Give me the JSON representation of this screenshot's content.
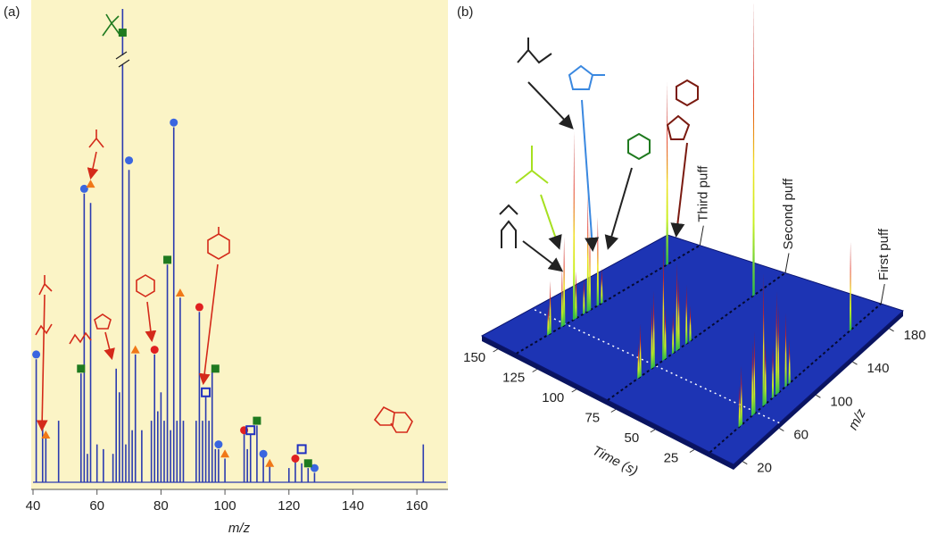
{
  "chart_data": [
    {
      "type": "stem",
      "label": "(a)",
      "xlabel": "m/z",
      "xlim": [
        40,
        170
      ],
      "xticks": [
        40,
        60,
        80,
        100,
        120,
        140,
        160
      ],
      "ylim": [
        0,
        100
      ],
      "color": "#2a3ab0",
      "x": [
        41,
        43,
        44,
        48,
        55,
        56,
        57,
        58,
        60,
        62,
        65,
        66,
        67,
        68,
        69,
        70,
        71,
        72,
        74,
        77,
        78,
        79,
        80,
        81,
        82,
        83,
        84,
        85,
        86,
        87,
        91,
        92,
        93,
        94,
        95,
        96,
        97,
        98,
        100,
        106,
        107,
        108,
        110,
        112,
        114,
        120,
        122,
        124,
        126,
        128,
        162
      ],
      "values": [
        26,
        13,
        10,
        13,
        23,
        61,
        6,
        59,
        8,
        7,
        6,
        24,
        19,
        100,
        8,
        66,
        11,
        27,
        11,
        13,
        27,
        15,
        19,
        13,
        46,
        11,
        75,
        13,
        39,
        13,
        13,
        36,
        13,
        18,
        13,
        24,
        7,
        7,
        5,
        11,
        7,
        10,
        12,
        6,
        4,
        3,
        5,
        4,
        3,
        2,
        8
      ],
      "markers": [
        {
          "shape": "circle",
          "color": "#3a66e0",
          "x": [
            41,
            56,
            70,
            84,
            98,
            112,
            128
          ],
          "values": [
            27,
            62,
            68,
            76,
            8,
            6,
            3
          ]
        },
        {
          "shape": "square",
          "color": "#1f7a1f",
          "x": [
            55,
            68,
            82,
            97,
            110,
            126
          ],
          "values": [
            24,
            95,
            47,
            24,
            13,
            4
          ]
        },
        {
          "shape": "triangle",
          "color": "#f07818",
          "x": [
            44,
            58,
            72,
            86,
            100,
            114
          ],
          "values": [
            10,
            63,
            28,
            40,
            6,
            4
          ]
        },
        {
          "shape": "circle",
          "color": "#e02020",
          "x": [
            78,
            92,
            106,
            122
          ],
          "values": [
            28,
            37,
            11,
            5
          ]
        },
        {
          "shape": "open-square",
          "color": "#2030c0",
          "x": [
            94,
            108,
            124
          ],
          "values": [
            19,
            11,
            7
          ]
        }
      ]
    },
    {
      "type": "surface3d",
      "label": "(b)",
      "xlabel": "m/z",
      "ylabel": "Time (s)",
      "xlim": [
        10,
        195
      ],
      "xticks": [
        20,
        60,
        100,
        140,
        180
      ],
      "ylim": [
        0,
        160
      ],
      "yticks": [
        25,
        50,
        75,
        100,
        125,
        150
      ],
      "zlim": [
        0,
        100
      ],
      "series": [
        {
          "name": "First puff",
          "time": 15,
          "x": [
            42,
            44,
            56,
            58,
            68,
            70,
            78,
            82,
            84,
            92,
            96,
            162
          ],
          "values": [
            14,
            20,
            25,
            28,
            45,
            22,
            18,
            35,
            30,
            25,
            15,
            30
          ]
        },
        {
          "name": "Second puff",
          "time": 80,
          "x": [
            42,
            44,
            56,
            58,
            68,
            70,
            78,
            82,
            84,
            92,
            96,
            162
          ],
          "values": [
            12,
            18,
            22,
            26,
            40,
            18,
            14,
            30,
            24,
            20,
            12,
            100
          ]
        },
        {
          "name": "Third puff",
          "time": 138,
          "x": [
            42,
            44,
            56,
            58,
            68,
            70,
            78,
            82,
            84,
            92,
            96,
            162
          ],
          "values": [
            10,
            18,
            20,
            30,
            64,
            16,
            12,
            40,
            28,
            30,
            12,
            62
          ]
        }
      ]
    }
  ]
}
